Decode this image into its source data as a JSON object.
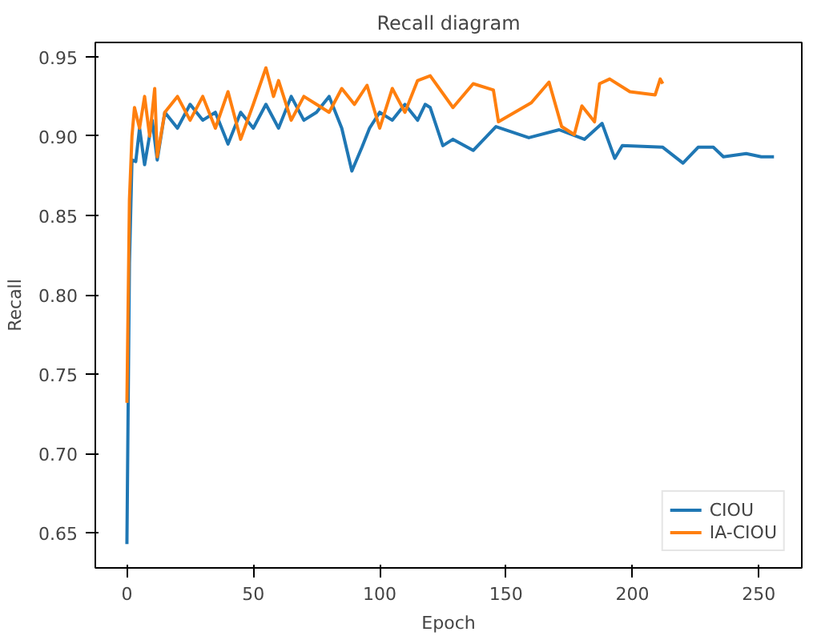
{
  "chart_data": {
    "type": "line",
    "title": "Recall diagram",
    "xlabel": "Epoch",
    "ylabel": "Recall",
    "xlim": [
      -12.5,
      267
    ],
    "ylim": [
      0.628,
      0.959
    ],
    "xticks": [
      0,
      50,
      100,
      150,
      200,
      250
    ],
    "yticks": [
      {
        "value": 0.65,
        "label": "0.65"
      },
      {
        "value": 0.7,
        "label": "0.70"
      },
      {
        "value": 0.75,
        "label": "0.75"
      },
      {
        "value": 0.8,
        "label": "0.80"
      },
      {
        "value": 0.85,
        "label": "0.85"
      },
      {
        "value": 0.9,
        "label": "0.90"
      },
      {
        "value": 0.95,
        "label": "0.95"
      }
    ],
    "grid": false,
    "legend": "bottom right",
    "marker": "none",
    "line_style": "solid",
    "series": [
      {
        "name": "CIOU",
        "color": "#1f77b4",
        "x": [
          0,
          1,
          2,
          3.5,
          5,
          7,
          10,
          12,
          15,
          20,
          25,
          30,
          35,
          40,
          45,
          50,
          55,
          60,
          65,
          70,
          75,
          80,
          85,
          89,
          93,
          96,
          100,
          105,
          110,
          115,
          118,
          120,
          125,
          129,
          137,
          146,
          159,
          171,
          181,
          188,
          193,
          196,
          212,
          220,
          226,
          232,
          236,
          245,
          251,
          256
        ],
        "values": [
          0.643,
          0.82,
          0.885,
          0.884,
          0.905,
          0.882,
          0.91,
          0.885,
          0.915,
          0.905,
          0.92,
          0.91,
          0.915,
          0.895,
          0.915,
          0.905,
          0.92,
          0.905,
          0.925,
          0.91,
          0.915,
          0.925,
          0.905,
          0.878,
          0.893,
          0.905,
          0.915,
          0.91,
          0.92,
          0.91,
          0.92,
          0.918,
          0.894,
          0.898,
          0.891,
          0.906,
          0.899,
          0.904,
          0.898,
          0.908,
          0.886,
          0.894,
          0.893,
          0.883,
          0.893,
          0.893,
          0.887,
          0.889,
          0.887,
          0.887
        ]
      },
      {
        "name": "IA-CIOU",
        "color": "#ff7f0e",
        "x": [
          0,
          1,
          2,
          3,
          5,
          7,
          9,
          11,
          12,
          15,
          20,
          25,
          30,
          35,
          40,
          45,
          50,
          55,
          58,
          60,
          65,
          70,
          75,
          80,
          85,
          90,
          95,
          100,
          105,
          110,
          115,
          120,
          129,
          137,
          145,
          147,
          160,
          167,
          172,
          177,
          180,
          185,
          187,
          191,
          199,
          209,
          211,
          212
        ],
        "values": [
          0.732,
          0.86,
          0.9,
          0.918,
          0.905,
          0.925,
          0.9,
          0.93,
          0.887,
          0.915,
          0.925,
          0.91,
          0.925,
          0.905,
          0.928,
          0.898,
          0.92,
          0.943,
          0.925,
          0.935,
          0.91,
          0.925,
          0.92,
          0.915,
          0.93,
          0.92,
          0.932,
          0.905,
          0.93,
          0.915,
          0.935,
          0.938,
          0.918,
          0.933,
          0.929,
          0.909,
          0.921,
          0.934,
          0.906,
          0.901,
          0.919,
          0.909,
          0.933,
          0.936,
          0.928,
          0.926,
          0.936,
          0.933
        ]
      }
    ]
  }
}
